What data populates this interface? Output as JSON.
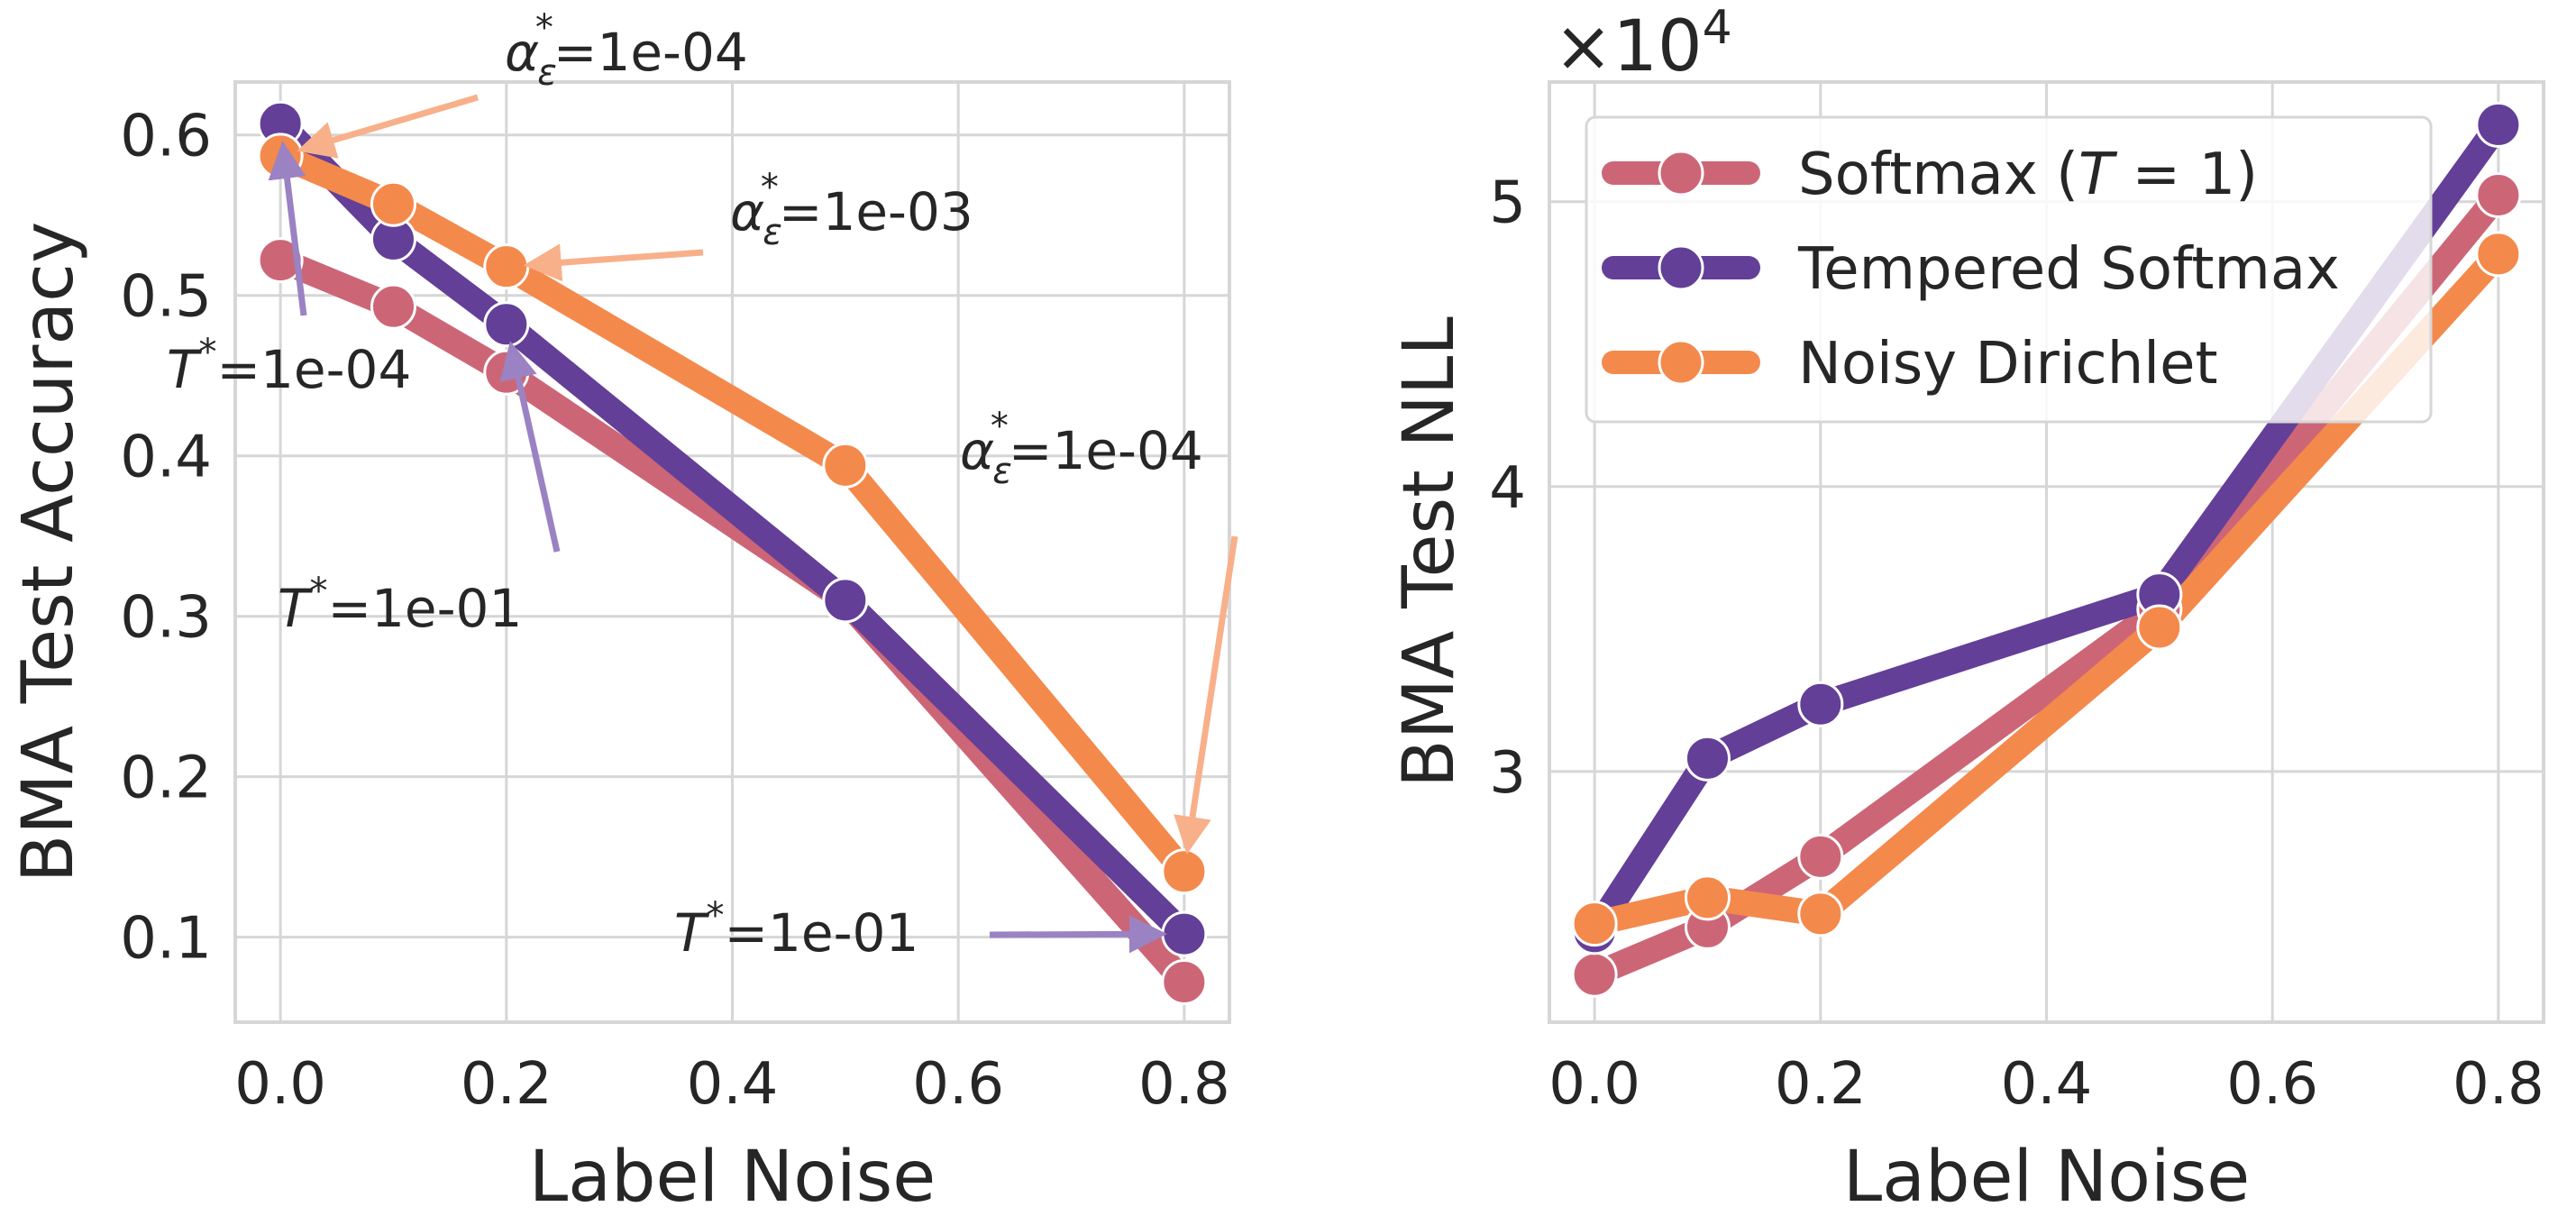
{
  "colors": {
    "softmax": "#cc6677",
    "tempered": "#633f98",
    "noisy": "#f4894c",
    "arrow_orange": "#f8b08a",
    "arrow_purple": "#9b82c2"
  },
  "chart_data": [
    {
      "type": "line",
      "xlabel": "Label Noise",
      "ylabel": "BMA Test Accuracy",
      "x": [
        0.0,
        0.1,
        0.2,
        0.5,
        0.8
      ],
      "xlim": [
        -0.04,
        0.84
      ],
      "ylim": [
        0.047,
        0.633
      ],
      "xticks": [
        "0.0",
        "0.2",
        "0.4",
        "0.6",
        "0.8"
      ],
      "yticks": [
        "0.1",
        "0.2",
        "0.3",
        "0.4",
        "0.5",
        "0.6"
      ],
      "grid": true,
      "series": [
        {
          "name": "Softmax (T = 1)",
          "key": "softmax",
          "values": [
            0.522,
            0.493,
            0.452,
            0.31,
            0.072
          ]
        },
        {
          "name": "Tempered Softmax",
          "key": "tempered",
          "values": [
            0.607,
            0.535,
            0.482,
            0.31,
            0.102
          ]
        },
        {
          "name": "Noisy Dirichlet",
          "key": "noisy",
          "values": [
            0.587,
            0.557,
            0.518,
            0.394,
            0.141
          ]
        }
      ],
      "annotations": [
        {
          "sym": "α",
          "sub": "ε",
          "text": "=1e-04",
          "series": "noisy",
          "x": 0.0
        },
        {
          "sym": "α",
          "sub": "ε",
          "text": "=1e-03",
          "series": "noisy",
          "x": 0.2
        },
        {
          "sym": "α",
          "sub": "ε",
          "text": "=1e-04",
          "series": "noisy",
          "x": 0.8
        },
        {
          "sym": "T",
          "sub": "",
          "text": "=1e-04",
          "series": "tempered",
          "x": 0.0
        },
        {
          "sym": "T",
          "sub": "",
          "text": "=1e-01",
          "series": "tempered",
          "x": 0.2
        },
        {
          "sym": "T",
          "sub": "",
          "text": "=1e-01",
          "series": "tempered",
          "x": 0.8
        }
      ]
    },
    {
      "type": "line",
      "xlabel": "Label Noise",
      "ylabel": "BMA Test NLL",
      "offset_text": "×10",
      "offset_exp": "4",
      "x": [
        0.0,
        0.1,
        0.2,
        0.5,
        0.8
      ],
      "xlim": [
        -0.04,
        0.84
      ],
      "ylim": [
        2.12,
        5.42
      ],
      "xticks": [
        "0.0",
        "0.2",
        "0.4",
        "0.6",
        "0.8"
      ],
      "yticks": [
        "3",
        "4",
        "5"
      ],
      "grid": true,
      "legend": "top-left",
      "series": [
        {
          "name": "Softmax (T = 1)",
          "key": "softmax",
          "values": [
            2.287,
            2.454,
            2.701,
            3.57,
            5.023
          ]
        },
        {
          "name": "Tempered Softmax",
          "key": "tempered",
          "values": [
            2.437,
            3.046,
            3.236,
            3.621,
            5.27
          ]
        },
        {
          "name": "Noisy Dirichlet",
          "key": "noisy",
          "values": [
            2.466,
            2.557,
            2.5,
            3.506,
            4.816
          ]
        }
      ]
    }
  ],
  "legend": {
    "items": [
      {
        "label_pre": "Softmax (",
        "label_sym": "T",
        "label_post": " = 1)",
        "key": "softmax"
      },
      {
        "label_pre": "Tempered Softmax",
        "label_sym": "",
        "label_post": "",
        "key": "tempered"
      },
      {
        "label_pre": "Noisy Dirichlet",
        "label_sym": "",
        "label_post": "",
        "key": "noisy"
      }
    ]
  }
}
